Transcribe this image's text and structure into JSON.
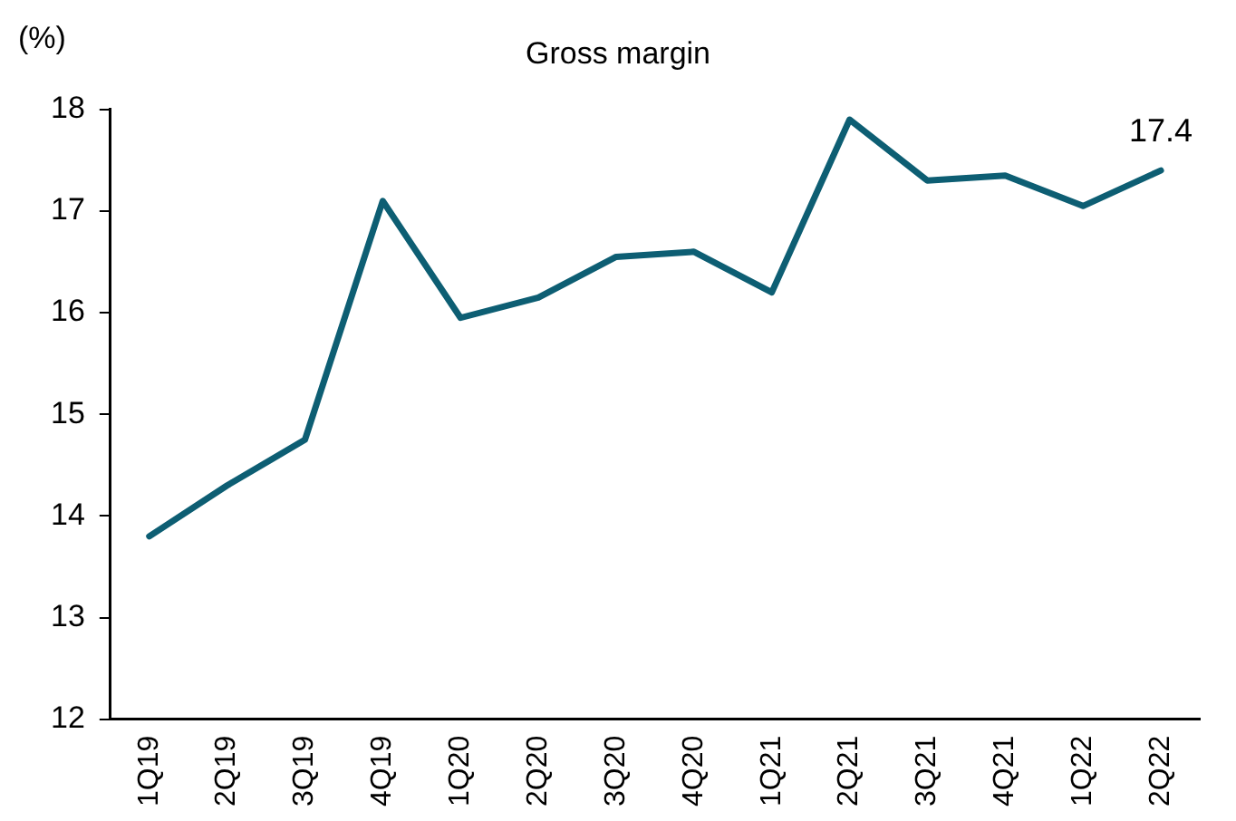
{
  "chart_data": {
    "type": "line",
    "title": "Gross margin",
    "ylabel": "(%)",
    "categories": [
      "1Q19",
      "2Q19",
      "3Q19",
      "4Q19",
      "1Q20",
      "2Q20",
      "3Q20",
      "4Q20",
      "1Q21",
      "2Q21",
      "3Q21",
      "4Q21",
      "1Q22",
      "2Q22"
    ],
    "series": [
      {
        "color": "#0d5e73",
        "values": [
          13.8,
          14.3,
          14.75,
          17.1,
          15.95,
          16.15,
          16.55,
          16.6,
          16.2,
          17.9,
          17.3,
          17.35,
          17.05,
          17.4
        ]
      }
    ],
    "ylim": [
      12,
      18
    ],
    "yticks": [
      12,
      13,
      14,
      15,
      16,
      17,
      18
    ],
    "grid": false,
    "legend": false,
    "marker": "none",
    "line_style": "solid",
    "annotations": [
      {
        "text": "17.4",
        "x": "2Q22",
        "y": 17.4
      }
    ]
  }
}
